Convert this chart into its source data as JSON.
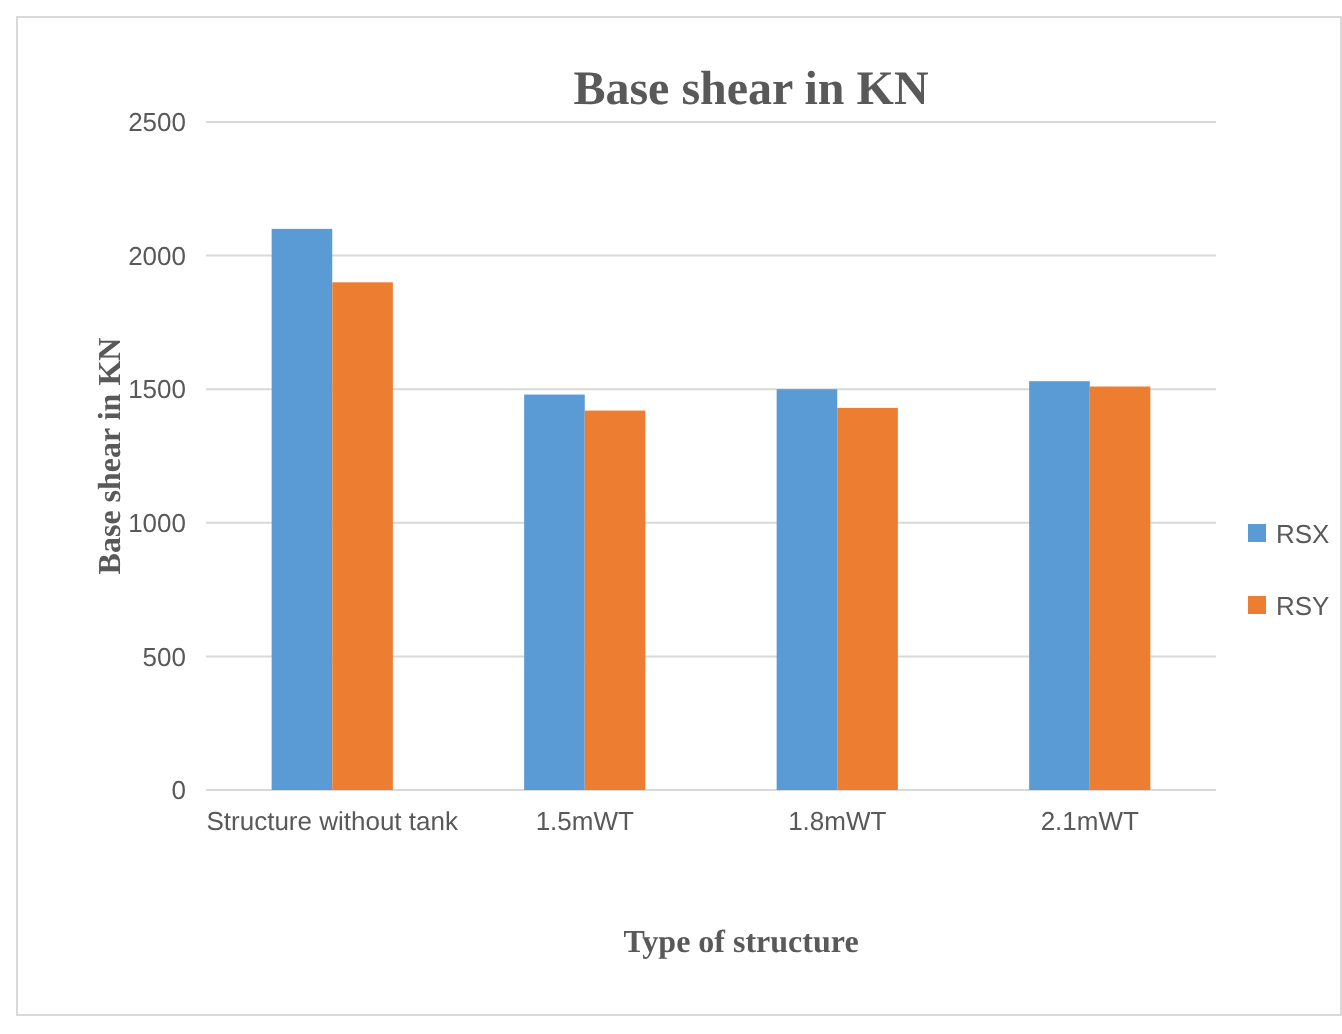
{
  "chart_data": {
    "type": "bar",
    "title": "Base shear in KN",
    "xlabel": "Type of structure",
    "ylabel": "Base shear in KN",
    "categories": [
      "Structure without tank",
      "1.5mWT",
      "1.8mWT",
      "2.1mWT"
    ],
    "series": [
      {
        "name": "RSX",
        "color": "#5b9bd5",
        "values": [
          2100,
          1480,
          1500,
          1530
        ]
      },
      {
        "name": "RSY",
        "color": "#ed7d31",
        "values": [
          1900,
          1420,
          1430,
          1510
        ]
      }
    ],
    "ylim": [
      0,
      2500
    ],
    "yticks": [
      0,
      500,
      1000,
      1500,
      2000,
      2500
    ],
    "grid": "y",
    "legend": "right"
  }
}
